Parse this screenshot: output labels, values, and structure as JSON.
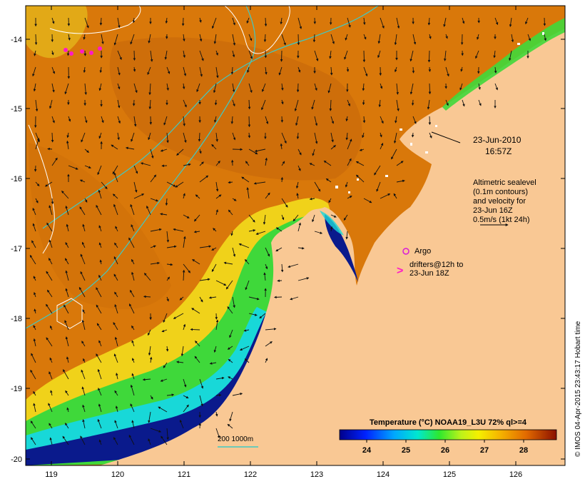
{
  "map": {
    "axes": {
      "x_ticks": [
        "119",
        "120",
        "121",
        "122",
        "123",
        "124",
        "125",
        "126"
      ],
      "y_ticks": [
        "-14",
        "-15",
        "-16",
        "-17",
        "-18",
        "-19",
        "-20"
      ]
    },
    "annotations": {
      "date": "23-Jun-2010",
      "time": "16:57Z",
      "altimetry_lines": [
        "Altimetric sealevel",
        "(0.1m contours)",
        "and velocity for",
        "23-Jun 16Z",
        "0.5m/s (1kt 24h)"
      ],
      "argo_label": "Argo",
      "drifters_lines": [
        "drifters@12h to",
        "23-Jun 18Z"
      ],
      "drifter_symbol": ">",
      "isobath_label": "200  1000m"
    },
    "colorbar": {
      "title": "Temperature (°C) NOAA19_L3U 72% ql>=4",
      "ticks": [
        "24",
        "25",
        "26",
        "27",
        "28"
      ]
    },
    "credit": "© IMOS 04-Apr-2015 23:43:17 Hobart time",
    "colors": {
      "land": "#f9c894",
      "warm_sea": "#d9780a",
      "cool_sea": "#0a1a8c",
      "isobath": "#3fc9c4",
      "contour": "#ffffff",
      "argo": "#d81ad8",
      "drifter": "#ff19c8"
    }
  }
}
